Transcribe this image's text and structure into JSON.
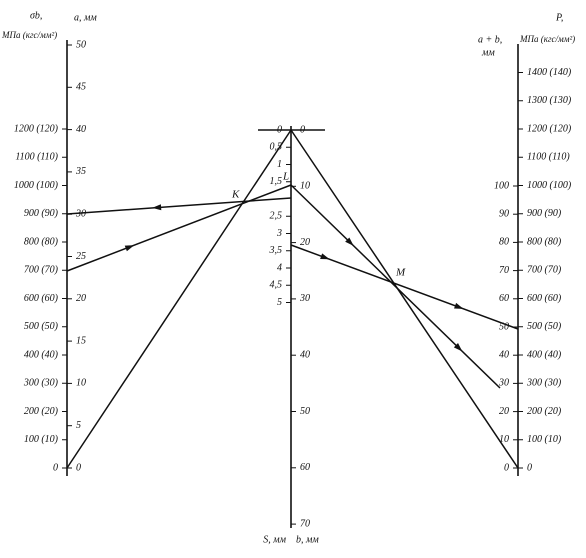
{
  "left_axis": {
    "stress_title": "σb,",
    "stress_unit": "МПа (кгс/мм²)",
    "a_title": "a, мм",
    "stress_ticks": [
      {
        "value": 0,
        "label": "0"
      },
      {
        "value": 100,
        "label": "100 (10)"
      },
      {
        "value": 200,
        "label": "200 (20)"
      },
      {
        "value": 300,
        "label": "300 (30)"
      },
      {
        "value": 400,
        "label": "400 (40)"
      },
      {
        "value": 500,
        "label": "500 (50)"
      },
      {
        "value": 600,
        "label": "600 (60)"
      },
      {
        "value": 700,
        "label": "700 (70)"
      },
      {
        "value": 800,
        "label": "800 (80)"
      },
      {
        "value": 900,
        "label": "900 (90)"
      },
      {
        "value": 1000,
        "label": "1000 (100)"
      },
      {
        "value": 1100,
        "label": "1100 (110)"
      },
      {
        "value": 1200,
        "label": "1200 (120)"
      }
    ],
    "a_ticks": [
      0,
      5,
      10,
      15,
      20,
      25,
      30,
      35,
      40,
      45,
      50
    ]
  },
  "middle_axis": {
    "s_title": "S, мм",
    "b_title": "b, мм",
    "s_ticks": [
      {
        "value": 0,
        "label": "0"
      },
      {
        "value": 0.5,
        "label": "0,5"
      },
      {
        "value": 1,
        "label": "1"
      },
      {
        "value": 1.5,
        "label": "1,5"
      },
      {
        "value": 2.5,
        "label": "2,5"
      },
      {
        "value": 3,
        "label": "3"
      },
      {
        "value": 3.5,
        "label": "3,5"
      },
      {
        "value": 4,
        "label": "4"
      },
      {
        "value": 4.5,
        "label": "4,5"
      },
      {
        "value": 5,
        "label": "5"
      }
    ],
    "b_ticks": [
      0,
      10,
      20,
      30,
      40,
      50,
      60,
      70
    ]
  },
  "right_axis": {
    "ab_title": "a + b,",
    "ab_unit": "мм",
    "p_title": "P,",
    "p_unit": "МПа (кгс/мм²)",
    "ab_ticks": [
      0,
      10,
      20,
      30,
      40,
      50,
      60,
      70,
      80,
      90,
      100
    ],
    "p_ticks": [
      {
        "value": 0,
        "label": "0"
      },
      {
        "value": 100,
        "label": "100 (10)"
      },
      {
        "value": 200,
        "label": "200 (20)"
      },
      {
        "value": 300,
        "label": "300 (30)"
      },
      {
        "value": 400,
        "label": "400 (40)"
      },
      {
        "value": 500,
        "label": "500 (50)"
      },
      {
        "value": 600,
        "label": "600 (60)"
      },
      {
        "value": 700,
        "label": "700 (70)"
      },
      {
        "value": 800,
        "label": "800 (80)"
      },
      {
        "value": 900,
        "label": "900 (90)"
      },
      {
        "value": 1000,
        "label": "1000 (100)"
      },
      {
        "value": 1100,
        "label": "1100 (110)"
      },
      {
        "value": 1200,
        "label": "1200 (120)"
      },
      {
        "value": 1300,
        "label": "1300 (130)"
      },
      {
        "value": 1400,
        "label": "1400 (140)"
      }
    ]
  },
  "points": [
    "K",
    "L",
    "M"
  ]
}
